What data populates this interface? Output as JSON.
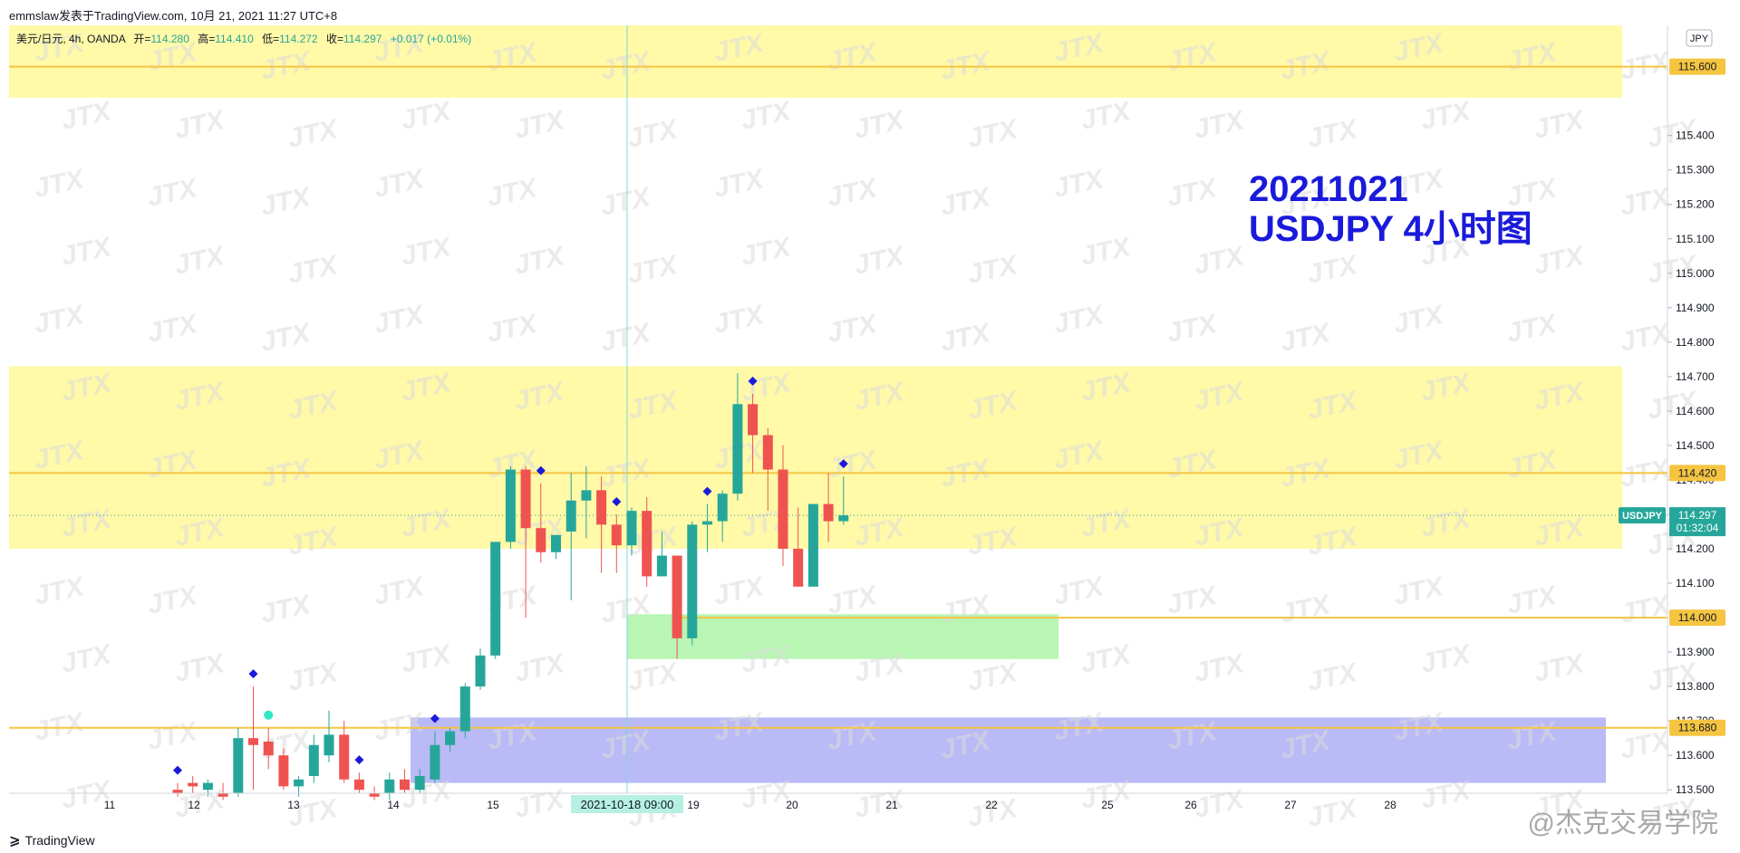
{
  "credit": "emmslaw发表于TradingView.com, 10月 21, 2021 11:27 UTC+8",
  "legend": {
    "symbol": "美元/日元, 4h, OANDA",
    "open_label": "开=",
    "open": "114.280",
    "high_label": "高=",
    "high": "114.410",
    "low_label": "低=",
    "low": "114.272",
    "close_label": "收=",
    "close": "114.297",
    "change": "+0.017 (+0.01%)"
  },
  "annotation": {
    "line1": "20211021",
    "line2": "USDJPY 4小时图"
  },
  "currency_button": "JPY",
  "price_badge": {
    "symbol": "USDJPY",
    "price": "114.297",
    "countdown": "01:32:04"
  },
  "crosshair_label": "2021-10-18 09:00",
  "level_labels": [
    "115.600",
    "114.420",
    "114.000",
    "113.680"
  ],
  "brand": "TradingView",
  "site_watermark": "@杰克交易学院",
  "colors": {
    "up": "#26a69a",
    "down": "#ef5350",
    "resistance_zone": "#fff9a8",
    "level_line": "#f5c542",
    "demand_zone": "#b9f5b3",
    "support_zone": "#b3b3f5",
    "annotation": "#1a1adb",
    "marker": "#1a1adb",
    "marker_alt": "#2ee8c6"
  },
  "chart_data": {
    "type": "candlestick",
    "timeframe": "4h",
    "y_ticks": [
      115.4,
      115.3,
      115.2,
      115.1,
      115.0,
      114.9,
      114.8,
      114.7,
      114.6,
      114.5,
      114.4,
      114.3,
      114.2,
      114.1,
      113.9,
      113.8,
      113.7,
      113.6,
      113.5
    ],
    "x_ticks": [
      "11",
      "12",
      "13",
      "14",
      "15",
      "19",
      "20",
      "21",
      "22",
      "25",
      "26",
      "27",
      "28"
    ],
    "ylim": [
      113.49,
      115.72
    ],
    "levels": [
      115.6,
      114.42,
      114.0,
      113.68
    ],
    "zones": [
      {
        "kind": "resistance",
        "from": 115.51,
        "to": 115.72
      },
      {
        "kind": "resistance",
        "from": 114.2,
        "to": 114.73
      },
      {
        "kind": "demand",
        "from": 113.88,
        "to": 114.01
      },
      {
        "kind": "support",
        "from": 113.52,
        "to": 113.71
      }
    ],
    "candles": [
      {
        "o": 113.5,
        "h": 113.52,
        "l": 113.48,
        "c": 113.49
      },
      {
        "o": 113.52,
        "h": 113.54,
        "l": 113.49,
        "c": 113.51
      },
      {
        "o": 113.5,
        "h": 113.53,
        "l": 113.48,
        "c": 113.52
      },
      {
        "o": 113.49,
        "h": 113.52,
        "l": 113.47,
        "c": 113.48
      },
      {
        "o": 113.49,
        "h": 113.68,
        "l": 113.48,
        "c": 113.65
      },
      {
        "o": 113.65,
        "h": 113.8,
        "l": 113.5,
        "c": 113.63
      },
      {
        "o": 113.64,
        "h": 113.68,
        "l": 113.56,
        "c": 113.6
      },
      {
        "o": 113.6,
        "h": 113.62,
        "l": 113.5,
        "c": 113.51
      },
      {
        "o": 113.51,
        "h": 113.54,
        "l": 113.48,
        "c": 113.53
      },
      {
        "o": 113.54,
        "h": 113.66,
        "l": 113.52,
        "c": 113.63
      },
      {
        "o": 113.6,
        "h": 113.73,
        "l": 113.58,
        "c": 113.66
      },
      {
        "o": 113.66,
        "h": 113.7,
        "l": 113.52,
        "c": 113.53
      },
      {
        "o": 113.53,
        "h": 113.55,
        "l": 113.49,
        "c": 113.5
      },
      {
        "o": 113.49,
        "h": 113.51,
        "l": 113.47,
        "c": 113.48
      },
      {
        "o": 113.49,
        "h": 113.55,
        "l": 113.47,
        "c": 113.53
      },
      {
        "o": 113.53,
        "h": 113.56,
        "l": 113.49,
        "c": 113.5
      },
      {
        "o": 113.5,
        "h": 113.56,
        "l": 113.49,
        "c": 113.54
      },
      {
        "o": 113.53,
        "h": 113.67,
        "l": 113.52,
        "c": 113.63
      },
      {
        "o": 113.63,
        "h": 113.68,
        "l": 113.61,
        "c": 113.67
      },
      {
        "o": 113.67,
        "h": 113.81,
        "l": 113.65,
        "c": 113.8
      },
      {
        "o": 113.8,
        "h": 113.91,
        "l": 113.79,
        "c": 113.89
      },
      {
        "o": 113.89,
        "h": 114.22,
        "l": 113.88,
        "c": 114.22
      },
      {
        "o": 114.22,
        "h": 114.44,
        "l": 114.2,
        "c": 114.43
      },
      {
        "o": 114.43,
        "h": 114.44,
        "l": 114.0,
        "c": 114.26
      },
      {
        "o": 114.26,
        "h": 114.39,
        "l": 114.16,
        "c": 114.19
      },
      {
        "o": 114.19,
        "h": 114.24,
        "l": 114.17,
        "c": 114.24
      },
      {
        "o": 114.25,
        "h": 114.42,
        "l": 114.05,
        "c": 114.34
      },
      {
        "o": 114.34,
        "h": 114.44,
        "l": 114.23,
        "c": 114.37
      },
      {
        "o": 114.37,
        "h": 114.41,
        "l": 114.13,
        "c": 114.27
      },
      {
        "o": 114.27,
        "h": 114.3,
        "l": 114.13,
        "c": 114.21
      },
      {
        "o": 114.21,
        "h": 114.32,
        "l": 114.18,
        "c": 114.31
      },
      {
        "o": 114.31,
        "h": 114.35,
        "l": 114.09,
        "c": 114.12
      },
      {
        "o": 114.12,
        "h": 114.25,
        "l": 114.12,
        "c": 114.18
      },
      {
        "o": 114.18,
        "h": 114.18,
        "l": 113.88,
        "c": 113.94
      },
      {
        "o": 113.94,
        "h": 114.28,
        "l": 113.92,
        "c": 114.27
      },
      {
        "o": 114.27,
        "h": 114.33,
        "l": 114.19,
        "c": 114.28
      },
      {
        "o": 114.28,
        "h": 114.37,
        "l": 114.22,
        "c": 114.36
      },
      {
        "o": 114.36,
        "h": 114.71,
        "l": 114.34,
        "c": 114.62
      },
      {
        "o": 114.62,
        "h": 114.65,
        "l": 114.42,
        "c": 114.53
      },
      {
        "o": 114.53,
        "h": 114.55,
        "l": 114.31,
        "c": 114.43
      },
      {
        "o": 114.43,
        "h": 114.5,
        "l": 114.15,
        "c": 114.2
      },
      {
        "o": 114.2,
        "h": 114.32,
        "l": 114.09,
        "c": 114.09
      },
      {
        "o": 114.09,
        "h": 114.32,
        "l": 114.09,
        "c": 114.33
      },
      {
        "o": 114.33,
        "h": 114.42,
        "l": 114.22,
        "c": 114.28
      },
      {
        "o": 114.28,
        "h": 114.41,
        "l": 114.27,
        "c": 114.297
      }
    ],
    "markers": [
      {
        "i": 0,
        "pos": "above",
        "color": "#1a1adb"
      },
      {
        "i": 5,
        "pos": "above",
        "color": "#1a1adb"
      },
      {
        "i": 6,
        "pos": "above",
        "color": "#2ee8c6"
      },
      {
        "i": 12,
        "pos": "above",
        "color": "#1a1adb"
      },
      {
        "i": 17,
        "pos": "above",
        "color": "#1a1adb"
      },
      {
        "i": 24,
        "pos": "above",
        "color": "#1a1adb"
      },
      {
        "i": 29,
        "pos": "above",
        "color": "#1a1adb"
      },
      {
        "i": 35,
        "pos": "above",
        "color": "#1a1adb"
      },
      {
        "i": 38,
        "pos": "above",
        "color": "#1a1adb"
      },
      {
        "i": 44,
        "pos": "above",
        "color": "#1a1adb"
      }
    ]
  }
}
